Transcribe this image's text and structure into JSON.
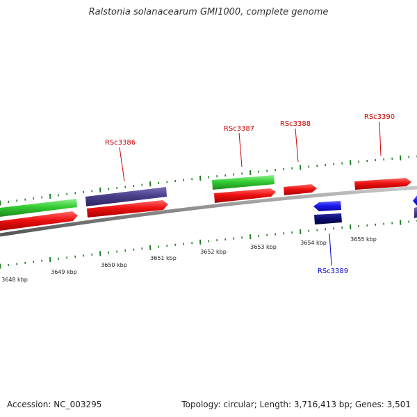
{
  "title": "Ralstonia solanacearum GMI1000, complete genome",
  "footer": {
    "accession": "Accession: NC_003295",
    "stats": "Topology: circular; Length: 3,716,413 bp; Genes: 3,501"
  },
  "colors": {
    "cds_forward": "#ee1111",
    "feature_green": "#33cc33",
    "feature_purple": "#4a3f8a",
    "cds_reverse": "#1a1aee",
    "feature_navy": "#0a0a70",
    "backbone": "#888888",
    "tick": "#1e7d1e",
    "label_forward": "#cc0000",
    "label_reverse": "#0000cc"
  },
  "ticks": [
    {
      "label": "3648 kbp"
    },
    {
      "label": "3649 kbp"
    },
    {
      "label": "3650 kbp"
    },
    {
      "label": "3651 kbp"
    },
    {
      "label": "3652 kbp"
    },
    {
      "label": "3653 kbp"
    },
    {
      "label": "3654 kbp"
    },
    {
      "label": "3655 kbp"
    }
  ],
  "gene_labels": [
    {
      "name": "RSc3386",
      "strand": "forward"
    },
    {
      "name": "RSc3387",
      "strand": "forward"
    },
    {
      "name": "RSc3388",
      "strand": "forward"
    },
    {
      "name": "RSc3389",
      "strand": "reverse"
    },
    {
      "name": "RSc3390",
      "strand": "forward"
    }
  ]
}
